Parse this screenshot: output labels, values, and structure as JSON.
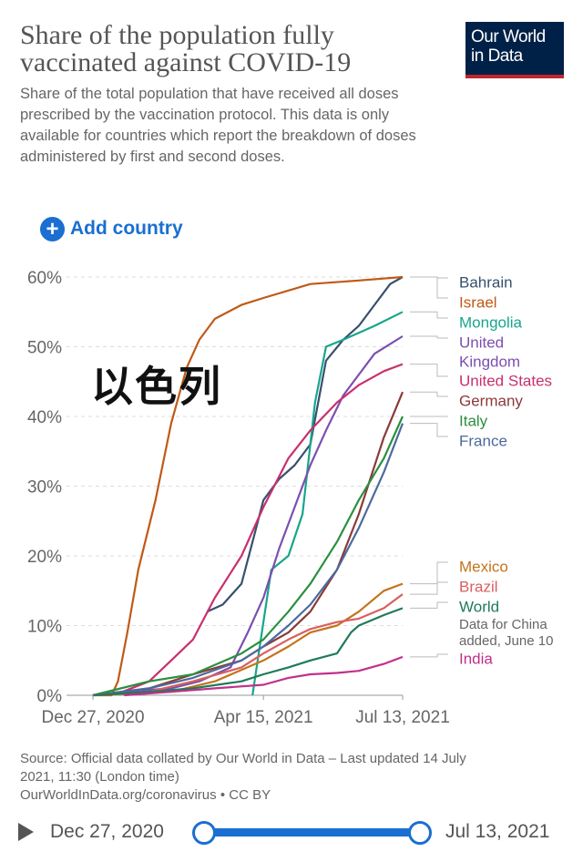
{
  "header": {
    "title": "Share of the population fully vaccinated against COVID-19",
    "subtitle": "Share of the total population that have received all doses prescribed by the vaccination protocol. This data is only available for countries which report the breakdown of doses administered by first and second doses.",
    "logo_line1": "Our World",
    "logo_line2": "in Data"
  },
  "controls": {
    "add_country_label": "Add country"
  },
  "overlay_text": "以色列",
  "footer": {
    "source_line1": "Source: Official data collated by Our World in Data – Last updated 14 July",
    "source_line2": "2021, 11:30 (London time)",
    "source_line3": "OurWorldInData.org/coronavirus • CC BY"
  },
  "timeline": {
    "start_label": "Dec 27, 2020",
    "end_label": "Jul 13, 2021"
  },
  "chart_data": {
    "type": "line",
    "title": "Share of the population fully vaccinated against COVID-19",
    "x_start": "Dec 27, 2020",
    "x_end": "Jul 13, 2021",
    "x_ticks": [
      "Dec 27, 2020",
      "Apr 15, 2021",
      "Jul 13, 2021"
    ],
    "y_ticks": [
      "0%",
      "10%",
      "20%",
      "30%",
      "40%",
      "50%",
      "60%"
    ],
    "ylim": [
      0,
      60
    ],
    "series": [
      {
        "name": "Bahrain",
        "color": "#38506f",
        "points": [
          [
            "2021-03-10",
            12
          ],
          [
            "2021-03-20",
            13
          ],
          [
            "2021-04-01",
            16
          ],
          [
            "2021-04-08",
            22
          ],
          [
            "2021-04-15",
            28
          ],
          [
            "2021-04-25",
            31
          ],
          [
            "2021-05-05",
            33
          ],
          [
            "2021-05-15",
            36
          ],
          [
            "2021-05-25",
            48
          ],
          [
            "2021-06-05",
            51
          ],
          [
            "2021-06-15",
            53
          ],
          [
            "2021-06-25",
            56
          ],
          [
            "2021-07-05",
            59
          ],
          [
            "2021-07-13",
            60
          ]
        ]
      },
      {
        "name": "Israel",
        "color": "#c05917",
        "points": [
          [
            "2020-12-27",
            0
          ],
          [
            "2021-01-08",
            0
          ],
          [
            "2021-01-12",
            2
          ],
          [
            "2021-01-18",
            9
          ],
          [
            "2021-01-25",
            18
          ],
          [
            "2021-02-05",
            28
          ],
          [
            "2021-02-15",
            39
          ],
          [
            "2021-02-25",
            47
          ],
          [
            "2021-03-05",
            51
          ],
          [
            "2021-03-15",
            54
          ],
          [
            "2021-04-01",
            56
          ],
          [
            "2021-04-15",
            57
          ],
          [
            "2021-05-15",
            59
          ],
          [
            "2021-06-15",
            59.5
          ],
          [
            "2021-07-13",
            60
          ]
        ]
      },
      {
        "name": "Mongolia",
        "color": "#18a58c",
        "points": [
          [
            "2021-04-08",
            0
          ],
          [
            "2021-04-12",
            6
          ],
          [
            "2021-04-20",
            18
          ],
          [
            "2021-05-01",
            20
          ],
          [
            "2021-05-10",
            26
          ],
          [
            "2021-05-18",
            42
          ],
          [
            "2021-05-25",
            50
          ],
          [
            "2021-06-05",
            51
          ],
          [
            "2021-06-15",
            52
          ],
          [
            "2021-06-25",
            53
          ],
          [
            "2021-07-13",
            55
          ]
        ]
      },
      {
        "name": "United Kingdom",
        "color": "#7b4fb0",
        "points": [
          [
            "2020-12-27",
            0
          ],
          [
            "2021-01-15",
            0.5
          ],
          [
            "2021-02-15",
            1
          ],
          [
            "2021-03-05",
            2
          ],
          [
            "2021-03-25",
            4
          ],
          [
            "2021-04-05",
            9
          ],
          [
            "2021-04-15",
            14
          ],
          [
            "2021-04-25",
            21
          ],
          [
            "2021-05-05",
            27
          ],
          [
            "2021-05-15",
            33
          ],
          [
            "2021-05-25",
            38
          ],
          [
            "2021-06-05",
            43
          ],
          [
            "2021-06-15",
            46
          ],
          [
            "2021-06-25",
            49
          ],
          [
            "2021-07-13",
            51.5
          ]
        ]
      },
      {
        "name": "United States",
        "color": "#c8306e",
        "points": [
          [
            "2020-12-27",
            0
          ],
          [
            "2021-01-15",
            0.5
          ],
          [
            "2021-02-01",
            2
          ],
          [
            "2021-02-15",
            5
          ],
          [
            "2021-03-01",
            8
          ],
          [
            "2021-03-15",
            14
          ],
          [
            "2021-04-01",
            20
          ],
          [
            "2021-04-15",
            27
          ],
          [
            "2021-05-01",
            34
          ],
          [
            "2021-05-15",
            38
          ],
          [
            "2021-06-01",
            42
          ],
          [
            "2021-06-15",
            44.5
          ],
          [
            "2021-07-01",
            46.5
          ],
          [
            "2021-07-13",
            47.5
          ]
        ]
      },
      {
        "name": "Germany",
        "color": "#8b3a3a",
        "points": [
          [
            "2020-12-27",
            0
          ],
          [
            "2021-02-01",
            1
          ],
          [
            "2021-03-01",
            3
          ],
          [
            "2021-04-01",
            5
          ],
          [
            "2021-04-15",
            7
          ],
          [
            "2021-05-01",
            9
          ],
          [
            "2021-05-15",
            12
          ],
          [
            "2021-06-01",
            18
          ],
          [
            "2021-06-15",
            26
          ],
          [
            "2021-07-01",
            37
          ],
          [
            "2021-07-13",
            43.5
          ]
        ]
      },
      {
        "name": "Italy",
        "color": "#2b8f3f",
        "points": [
          [
            "2020-12-27",
            0
          ],
          [
            "2021-02-01",
            2
          ],
          [
            "2021-03-01",
            3
          ],
          [
            "2021-04-01",
            6
          ],
          [
            "2021-04-15",
            8
          ],
          [
            "2021-05-01",
            12
          ],
          [
            "2021-05-15",
            16
          ],
          [
            "2021-06-01",
            22
          ],
          [
            "2021-06-15",
            28
          ],
          [
            "2021-07-01",
            34
          ],
          [
            "2021-07-13",
            40
          ]
        ]
      },
      {
        "name": "France",
        "color": "#4c6a9c",
        "points": [
          [
            "2020-12-27",
            0
          ],
          [
            "2021-02-01",
            1
          ],
          [
            "2021-03-01",
            2.5
          ],
          [
            "2021-04-01",
            5
          ],
          [
            "2021-04-15",
            7
          ],
          [
            "2021-05-01",
            10
          ],
          [
            "2021-05-15",
            13
          ],
          [
            "2021-06-01",
            18
          ],
          [
            "2021-06-15",
            24
          ],
          [
            "2021-07-01",
            32
          ],
          [
            "2021-07-13",
            39
          ]
        ]
      },
      {
        "name": "Mexico",
        "color": "#c3731a",
        "points": [
          [
            "2020-12-27",
            0
          ],
          [
            "2021-02-15",
            0.5
          ],
          [
            "2021-03-15",
            2
          ],
          [
            "2021-04-15",
            5
          ],
          [
            "2021-05-01",
            7
          ],
          [
            "2021-05-15",
            9
          ],
          [
            "2021-06-01",
            10
          ],
          [
            "2021-06-15",
            12
          ],
          [
            "2021-07-01",
            15
          ],
          [
            "2021-07-13",
            16
          ]
        ]
      },
      {
        "name": "Brazil",
        "color": "#d95f5f",
        "points": [
          [
            "2020-12-27",
            0
          ],
          [
            "2021-02-01",
            0.5
          ],
          [
            "2021-03-01",
            2
          ],
          [
            "2021-04-01",
            4
          ],
          [
            "2021-04-15",
            6
          ],
          [
            "2021-05-01",
            8
          ],
          [
            "2021-05-15",
            9.5
          ],
          [
            "2021-06-01",
            10.5
          ],
          [
            "2021-06-15",
            11
          ],
          [
            "2021-07-01",
            12.5
          ],
          [
            "2021-07-13",
            14.5
          ]
        ]
      },
      {
        "name": "World",
        "color": "#1f7a5a",
        "points": [
          [
            "2020-12-27",
            0
          ],
          [
            "2021-02-01",
            0.5
          ],
          [
            "2021-03-01",
            1
          ],
          [
            "2021-04-01",
            2
          ],
          [
            "2021-04-15",
            3
          ],
          [
            "2021-05-01",
            4
          ],
          [
            "2021-05-15",
            5
          ],
          [
            "2021-06-01",
            6
          ],
          [
            "2021-06-10",
            9
          ],
          [
            "2021-06-15",
            10
          ],
          [
            "2021-07-01",
            11.5
          ],
          [
            "2021-07-13",
            12.5
          ]
        ]
      },
      {
        "name": "India",
        "color": "#c0308c",
        "points": [
          [
            "2021-01-16",
            0
          ],
          [
            "2021-02-15",
            0.5
          ],
          [
            "2021-03-15",
            1
          ],
          [
            "2021-04-15",
            1.5
          ],
          [
            "2021-05-01",
            2.5
          ],
          [
            "2021-05-15",
            3
          ],
          [
            "2021-06-01",
            3.2
          ],
          [
            "2021-06-15",
            3.5
          ],
          [
            "2021-07-01",
            4.5
          ],
          [
            "2021-07-13",
            5.5
          ]
        ]
      }
    ],
    "legend": [
      {
        "text": "Bahrain",
        "color": "#38506f"
      },
      {
        "text": "Israel",
        "color": "#c05917"
      },
      {
        "text": "Mongolia",
        "color": "#18a58c"
      },
      {
        "text": "United",
        "color": "#7b4fb0"
      },
      {
        "text": "Kingdom",
        "color": "#7b4fb0"
      },
      {
        "text": "United States",
        "color": "#c8306e"
      },
      {
        "text": "Germany",
        "color": "#8b3a3a"
      },
      {
        "text": "Italy",
        "color": "#2b8f3f"
      },
      {
        "text": "France",
        "color": "#4c6a9c"
      },
      {
        "text": "Mexico",
        "color": "#c3731a"
      },
      {
        "text": "Brazil",
        "color": "#d95f5f"
      },
      {
        "text": "World",
        "color": "#1f7a5a"
      },
      {
        "text": "Data for China",
        "color": "#666666"
      },
      {
        "text": "added, June 10",
        "color": "#666666"
      },
      {
        "text": "India",
        "color": "#c0308c"
      }
    ]
  }
}
